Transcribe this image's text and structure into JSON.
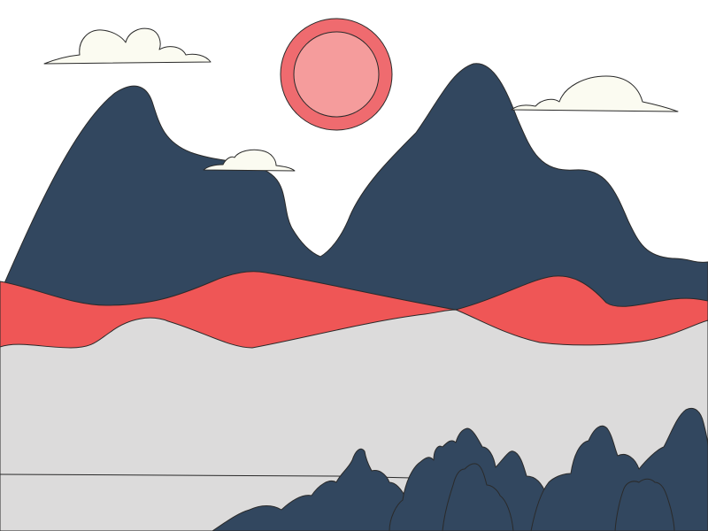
{
  "scene": {
    "elements": [
      "sun",
      "clouds",
      "dark-mountains",
      "red-hills",
      "grey-foreground",
      "tree-cluster"
    ]
  },
  "colors": {
    "sky": "#ffffff",
    "sun_outer": "#ef6b6f",
    "sun_inner": "#f59c9c",
    "cloud": "#fbfbf1",
    "mountain": "#32475f",
    "hills": "#ef5656",
    "ground": "#dcdbdb",
    "trees": "#32475f",
    "outline": "#2a2a2a"
  }
}
